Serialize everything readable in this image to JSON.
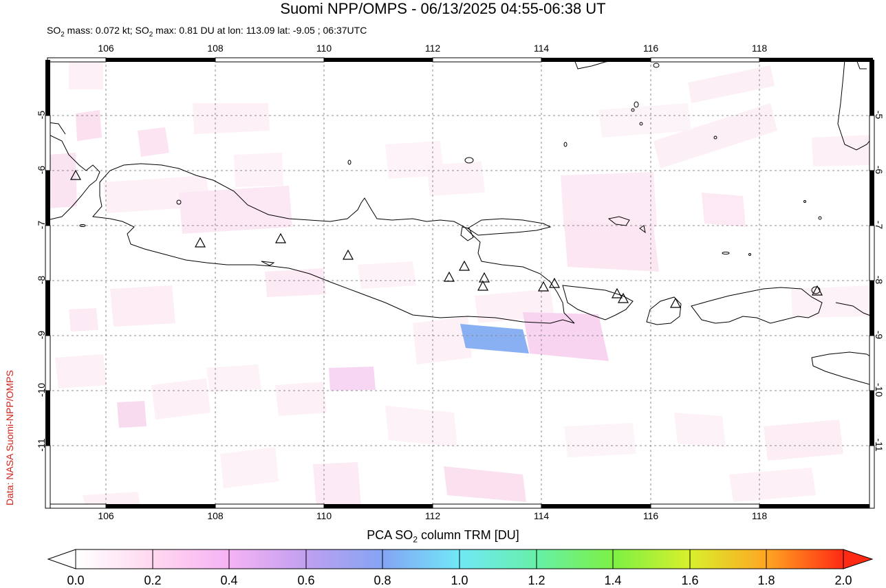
{
  "header": {
    "title": "Suomi NPP/OMPS - 06/13/2025 04:55-06:38 UT",
    "subtitle_parts": [
      "SO",
      "2",
      " mass: 0.072 kt; SO",
      "2",
      " max: 0.81 DU at lon: 113.09 lat: -9.05 ; 06:37UTC"
    ]
  },
  "credit": "Data: NASA Suomi-NPP/OMPS",
  "map": {
    "lon_ticks": [
      "106",
      "108",
      "110",
      "112",
      "114",
      "116",
      "118"
    ],
    "lat_ticks": [
      "-5",
      "-6",
      "-7",
      "-8",
      "-9",
      "-10",
      "-11"
    ],
    "lon_range": [
      104.9,
      120.0
    ],
    "lat_range": [
      -12.0,
      -4.0
    ],
    "gridlines": true,
    "volcano_marker": "triangle-icon",
    "max_so2": {
      "lon": 113.09,
      "lat": -9.05,
      "value_du": 0.81
    }
  },
  "colorbar": {
    "title_parts": [
      "PCA SO",
      "2",
      " column TRM [DU]"
    ],
    "ticks": [
      "0.0",
      "0.2",
      "0.4",
      "0.6",
      "0.8",
      "1.0",
      "1.2",
      "1.4",
      "1.6",
      "1.8",
      "2.0"
    ],
    "range": [
      0.0,
      2.0
    ],
    "colors": [
      "#ffffff",
      "#ffd0f0",
      "#f4aaf4",
      "#b4a0f0",
      "#7aa8f4",
      "#6cf0f4",
      "#64f0a0",
      "#78f040",
      "#dcf028",
      "#ffa020",
      "#ff3018"
    ]
  }
}
